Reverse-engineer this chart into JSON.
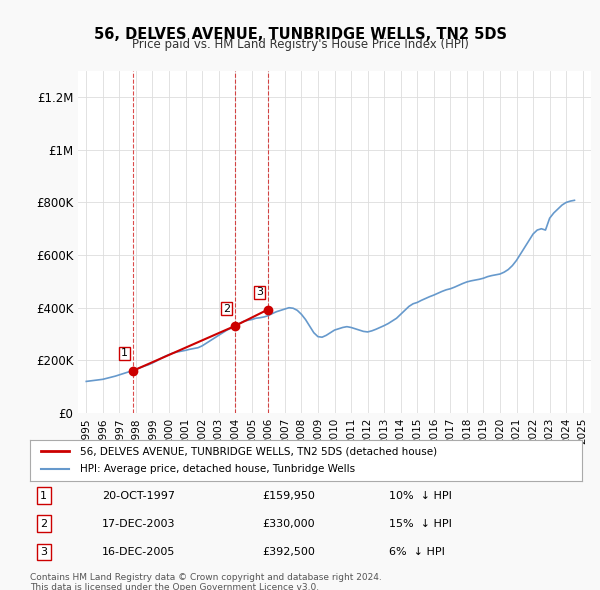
{
  "title": "56, DELVES AVENUE, TUNBRIDGE WELLS, TN2 5DS",
  "subtitle": "Price paid vs. HM Land Registry's House Price Index (HPI)",
  "hpi_label": "HPI: Average price, detached house, Tunbridge Wells",
  "price_label": "56, DELVES AVENUE, TUNBRIDGE WELLS, TN2 5DS (detached house)",
  "price_color": "#cc0000",
  "hpi_color": "#6699cc",
  "background_color": "#f9f9f9",
  "plot_bg": "#ffffff",
  "ylim": [
    0,
    1300000
  ],
  "yticks": [
    0,
    200000,
    400000,
    600000,
    800000,
    1000000,
    1200000
  ],
  "ytick_labels": [
    "£0",
    "£200K",
    "£400K",
    "£600K",
    "£800K",
    "£1M",
    "£1.2M"
  ],
  "sales": [
    {
      "num": 1,
      "date": "20-OCT-1997",
      "price": 159950,
      "year": 1997.8,
      "pct": "10%",
      "dir": "↓"
    },
    {
      "num": 2,
      "date": "17-DEC-2003",
      "price": 330000,
      "year": 2003.96,
      "pct": "15%",
      "dir": "↓"
    },
    {
      "num": 3,
      "date": "16-DEC-2005",
      "price": 392500,
      "year": 2005.96,
      "pct": "6%",
      "dir": "↓"
    }
  ],
  "xmin": 1994.5,
  "xmax": 2025.5,
  "xticks": [
    1995,
    1996,
    1997,
    1998,
    1999,
    2000,
    2001,
    2002,
    2003,
    2004,
    2005,
    2006,
    2007,
    2008,
    2009,
    2010,
    2011,
    2012,
    2013,
    2014,
    2015,
    2016,
    2017,
    2018,
    2019,
    2020,
    2021,
    2022,
    2023,
    2024,
    2025
  ],
  "footer1": "Contains HM Land Registry data © Crown copyright and database right 2024.",
  "footer2": "This data is licensed under the Open Government Licence v3.0.",
  "hpi_data_x": [
    1995,
    1995.25,
    1995.5,
    1995.75,
    1996,
    1996.25,
    1996.5,
    1996.75,
    1997,
    1997.25,
    1997.5,
    1997.75,
    1998,
    1998.25,
    1998.5,
    1998.75,
    1999,
    1999.25,
    1999.5,
    1999.75,
    2000,
    2000.25,
    2000.5,
    2000.75,
    2001,
    2001.25,
    2001.5,
    2001.75,
    2002,
    2002.25,
    2002.5,
    2002.75,
    2003,
    2003.25,
    2003.5,
    2003.75,
    2004,
    2004.25,
    2004.5,
    2004.75,
    2005,
    2005.25,
    2005.5,
    2005.75,
    2006,
    2006.25,
    2006.5,
    2006.75,
    2007,
    2007.25,
    2007.5,
    2007.75,
    2008,
    2008.25,
    2008.5,
    2008.75,
    2009,
    2009.25,
    2009.5,
    2009.75,
    2010,
    2010.25,
    2010.5,
    2010.75,
    2011,
    2011.25,
    2011.5,
    2011.75,
    2012,
    2012.25,
    2012.5,
    2012.75,
    2013,
    2013.25,
    2013.5,
    2013.75,
    2014,
    2014.25,
    2014.5,
    2014.75,
    2015,
    2015.25,
    2015.5,
    2015.75,
    2016,
    2016.25,
    2016.5,
    2016.75,
    2017,
    2017.25,
    2017.5,
    2017.75,
    2018,
    2018.25,
    2018.5,
    2018.75,
    2019,
    2019.25,
    2019.5,
    2019.75,
    2020,
    2020.25,
    2020.5,
    2020.75,
    2021,
    2021.25,
    2021.5,
    2021.75,
    2022,
    2022.25,
    2022.5,
    2022.75,
    2023,
    2023.25,
    2023.5,
    2023.75,
    2024,
    2024.25,
    2024.5
  ],
  "hpi_data_y": [
    120000,
    122000,
    124000,
    126000,
    128000,
    132000,
    136000,
    140000,
    145000,
    150000,
    155000,
    160000,
    165000,
    172000,
    178000,
    183000,
    190000,
    198000,
    207000,
    215000,
    222000,
    228000,
    232000,
    235000,
    238000,
    242000,
    245000,
    248000,
    255000,
    265000,
    275000,
    285000,
    295000,
    305000,
    315000,
    322000,
    330000,
    340000,
    348000,
    352000,
    355000,
    360000,
    362000,
    365000,
    370000,
    378000,
    385000,
    390000,
    395000,
    400000,
    398000,
    390000,
    375000,
    355000,
    330000,
    305000,
    290000,
    288000,
    295000,
    305000,
    315000,
    320000,
    325000,
    328000,
    325000,
    320000,
    315000,
    310000,
    308000,
    312000,
    318000,
    325000,
    332000,
    340000,
    350000,
    360000,
    375000,
    390000,
    405000,
    415000,
    420000,
    428000,
    435000,
    442000,
    448000,
    455000,
    462000,
    468000,
    472000,
    478000,
    485000,
    492000,
    498000,
    502000,
    505000,
    508000,
    512000,
    518000,
    522000,
    525000,
    528000,
    535000,
    545000,
    560000,
    580000,
    605000,
    630000,
    655000,
    680000,
    695000,
    700000,
    695000,
    740000,
    760000,
    775000,
    790000,
    800000,
    805000,
    808000
  ]
}
